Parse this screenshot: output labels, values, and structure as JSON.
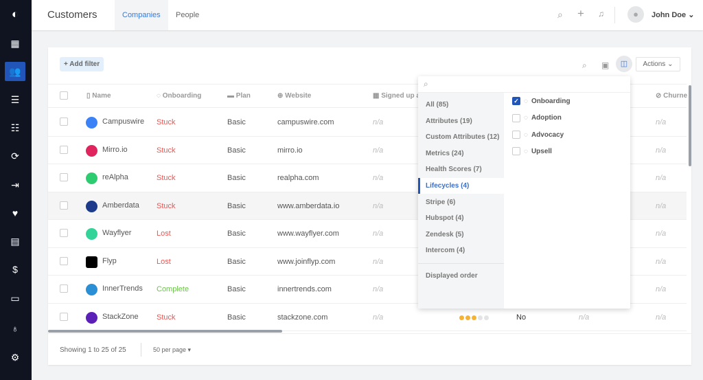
{
  "header": {
    "title": "Customers",
    "tabs": [
      {
        "label": "Companies",
        "active": true
      },
      {
        "label": "People",
        "active": false
      }
    ],
    "user": "John Doe"
  },
  "toolbar": {
    "add_filter": "+ Add filter",
    "actions": "Actions ⌄"
  },
  "columns": {
    "name": "Name",
    "onboarding": "Onboarding",
    "plan": "Plan",
    "website": "Website",
    "signed_up": "Signed up a",
    "churned": "Churne"
  },
  "rows": [
    {
      "name": "Campuswire",
      "onboarding": "Stuck",
      "status": "red",
      "plan": "Basic",
      "website": "campuswire.com",
      "signed": "n/a",
      "churned": "n/a",
      "logo_color": "#3b82f6"
    },
    {
      "name": "Mirro.io",
      "onboarding": "Stuck",
      "status": "red",
      "plan": "Basic",
      "website": "mirro.io",
      "signed": "n/a",
      "churned": "n/a",
      "logo_color": "#e0245e"
    },
    {
      "name": "reAlpha",
      "onboarding": "Stuck",
      "status": "red",
      "plan": "Basic",
      "website": "realpha.com",
      "signed": "n/a",
      "churned": "n/a",
      "logo_color": "#2ecc71"
    },
    {
      "name": "Amberdata",
      "onboarding": "Stuck",
      "status": "red",
      "plan": "Basic",
      "website": "www.amberdata.io",
      "signed": "n/a",
      "churned": "n/a",
      "logo_color": "#1e3a8a"
    },
    {
      "name": "Wayflyer",
      "onboarding": "Lost",
      "status": "red",
      "plan": "Basic",
      "website": "www.wayflyer.com",
      "signed": "n/a",
      "churned": "n/a",
      "logo_color": "#34d399"
    },
    {
      "name": "Flyp",
      "onboarding": "Lost",
      "status": "red",
      "plan": "Basic",
      "website": "www.joinflyp.com",
      "signed": "n/a",
      "churned": "n/a",
      "logo_color": "#000000"
    },
    {
      "name": "InnerTrends",
      "onboarding": "Complete",
      "status": "green",
      "plan": "Basic",
      "website": "innertrends.com",
      "signed": "n/a",
      "churned": "n/a",
      "logo_color": "#2b8fd6"
    },
    {
      "name": "StackZone",
      "onboarding": "Stuck",
      "status": "red",
      "plan": "Basic",
      "website": "stackzone.com",
      "signed": "n/a",
      "churned": "n/a",
      "logo_color": "#5b21b6",
      "health_score": 3,
      "flag": "No",
      "extra": "n/a"
    }
  ],
  "footer": {
    "showing": "Showing 1 to 25 of 25",
    "per_page": "50 per page ▾"
  },
  "column_picker": {
    "categories": [
      {
        "label": "All (85)"
      },
      {
        "label": "Attributes (19)"
      },
      {
        "label": "Custom Attributes (12)"
      },
      {
        "label": "Metrics (24)"
      },
      {
        "label": "Health Scores (7)"
      },
      {
        "label": "Lifecycles (4)",
        "active": true
      },
      {
        "label": "Stripe (6)"
      },
      {
        "label": "Hubspot (4)"
      },
      {
        "label": "Zendesk (5)"
      },
      {
        "label": "Intercom (4)"
      }
    ],
    "displayed_order": "Displayed order",
    "options": [
      {
        "label": "Onboarding",
        "checked": true
      },
      {
        "label": "Adoption",
        "checked": false
      },
      {
        "label": "Advocacy",
        "checked": false
      },
      {
        "label": "Upsell",
        "checked": false
      }
    ]
  },
  "colors": {
    "accent": "#2155b8",
    "sidebar": "#0f1420",
    "stuck": "#f0524f",
    "complete": "#6cc44a",
    "dot_on": "#f5b335",
    "dot_off": "#e3e4e6"
  }
}
